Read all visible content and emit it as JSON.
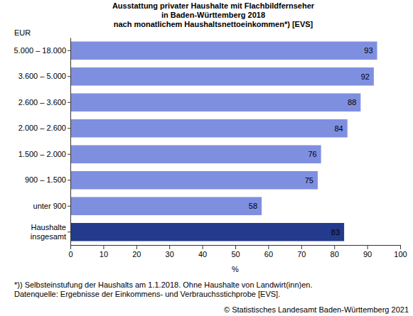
{
  "chart_data": {
    "type": "bar",
    "orientation": "horizontal",
    "title": [
      "Ausstattung privater Haushalte mit Flachbildfernseher",
      "in Baden-Württemberg 2018",
      "nach monatlichem Haushaltsnettoeinkommen*)  [EVS]"
    ],
    "y_label": "EUR",
    "x_label": "%",
    "categories": [
      "5.000 – 18.000",
      "3.600 – 5.000",
      "2.600 – 3.600",
      "2.000 – 2.600",
      "1.500 – 2.000",
      "900 – 1.500",
      "unter 900",
      "Haushalte insgesamt"
    ],
    "values": [
      93,
      92,
      88,
      84,
      76,
      75,
      58,
      83
    ],
    "colors": [
      "#7f8fe0",
      "#7f8fe0",
      "#7f8fe0",
      "#7f8fe0",
      "#7f8fe0",
      "#7f8fe0",
      "#7f8fe0",
      "#243a8c"
    ],
    "xlim": [
      0,
      100
    ],
    "xticks": [
      0,
      10,
      20,
      30,
      40,
      50,
      60,
      70,
      80,
      90,
      100
    ],
    "grid": false,
    "data_labels": true,
    "footnotes": [
      "*)) Selbsteinstufung der Haushalts am 1.1.2018. Ohne Haushalte von Landwirt(inn)en.",
      "Datenquelle: Ergebnisse der Einkommens- und Verbrauchsstichprobe [EVS]."
    ],
    "credit": "© Statistisches Landesamt Baden-Württemberg 2021"
  }
}
